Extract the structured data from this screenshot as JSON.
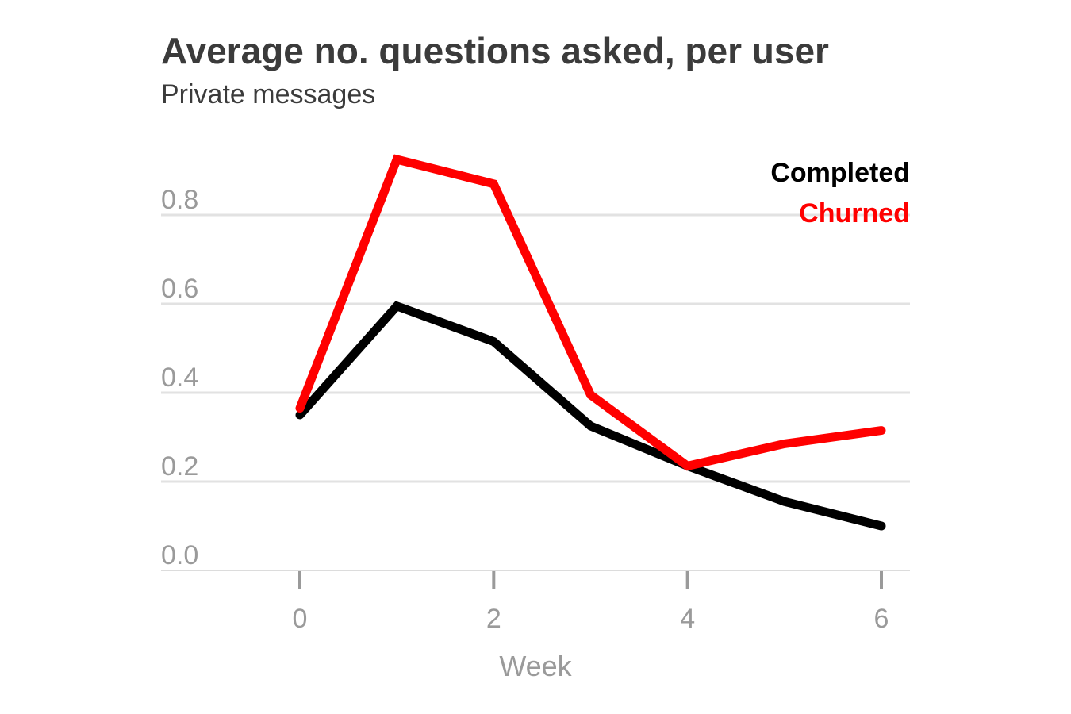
{
  "chart_data": {
    "type": "line",
    "title": "Average no. questions asked, per user",
    "subtitle": "Private messages",
    "xlabel": "Week",
    "ylabel": "",
    "x": [
      0,
      1,
      2,
      3,
      4,
      5,
      6
    ],
    "xlim": [
      -1.42,
      6.3
    ],
    "ylim": [
      0,
      0.9
    ],
    "xticks": [
      0,
      2,
      4,
      6
    ],
    "xtick_labels": [
      "0",
      "2",
      "4",
      "6"
    ],
    "yticks": [
      0,
      0.2,
      0.4,
      0.6,
      0.8
    ],
    "ytick_labels": [
      "0.0",
      "0.2",
      "0.4",
      "0.6",
      "0.8"
    ],
    "grid": true,
    "legend_position": "top-right",
    "series": [
      {
        "name": "Completed",
        "color": "#000000",
        "values": [
          0.35,
          0.595,
          0.515,
          0.325,
          0.235,
          0.155,
          0.1
        ]
      },
      {
        "name": "Churned",
        "color": "#ff0000",
        "values": [
          0.365,
          0.925,
          0.87,
          0.395,
          0.235,
          0.285,
          0.315
        ]
      }
    ]
  }
}
